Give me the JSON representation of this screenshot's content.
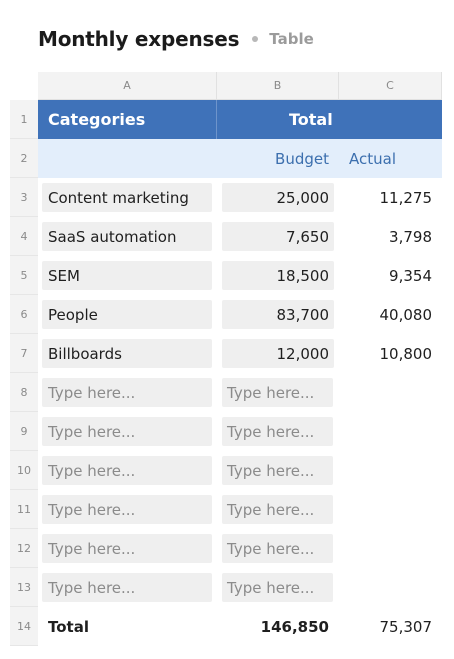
{
  "header": {
    "title": "Monthly expenses",
    "view_label": "Table"
  },
  "columns": [
    "A",
    "B",
    "C"
  ],
  "table": {
    "header": {
      "category": "Categories",
      "total": "Total"
    },
    "subheader": {
      "budget": "Budget",
      "actual": "Actual"
    },
    "rows": [
      {
        "num": "3",
        "category": "Content marketing",
        "budget": "25,000",
        "actual": "11,275"
      },
      {
        "num": "4",
        "category": "SaaS automation",
        "budget": "7,650",
        "actual": "3,798"
      },
      {
        "num": "5",
        "category": "SEM",
        "budget": "18,500",
        "actual": "9,354"
      },
      {
        "num": "6",
        "category": "People",
        "budget": "83,700",
        "actual": "40,080"
      },
      {
        "num": "7",
        "category": "Billboards",
        "budget": "12,000",
        "actual": "10,800"
      }
    ],
    "empty_rows": [
      "8",
      "9",
      "10",
      "11",
      "12",
      "13"
    ],
    "placeholder": "Type here...",
    "total": {
      "num": "14",
      "label": "Total",
      "budget": "146,850",
      "actual": "75,307"
    }
  },
  "row_numbers": {
    "header": "1",
    "subheader": "2"
  }
}
